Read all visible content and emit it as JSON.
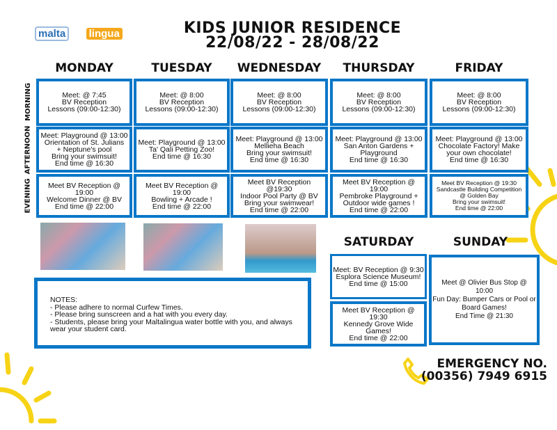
{
  "logo": {
    "line1": "malta",
    "line2": "lingua"
  },
  "title": {
    "line1": "KIDS JUNIOR RESIDENCE",
    "line2": "22/08/22 - 28/08/22"
  },
  "rows": [
    "MORNING",
    "AFTERNOON",
    "EVENING"
  ],
  "weekdays": [
    {
      "name": "MONDAY",
      "morning": "Meet: @ 7:45\nBV Reception\nLessons (09:00-12:30)",
      "afternoon": "Meet: Playground @ 13:00\nOrientation of St. Julians\n+ Neptune's pool\nBring your swimsuit!\nEnd time @ 16:30",
      "evening": "Meet BV Reception @ 19:00\nWelcome Dinner @ BV\nEnd time @ 22:00"
    },
    {
      "name": "TUESDAY",
      "morning": "Meet: @ 8:00\nBV Reception\nLessons (09:00-12:30)",
      "afternoon": "Meet: Playground @ 13:00\nTa' Qali Petting Zoo!\nEnd time @ 16:30",
      "evening": "Meet BV Reception @ 19:00\nBowling + Arcade !\nEnd time @ 22:00"
    },
    {
      "name": "WEDNESDAY",
      "morning": "Meet: @ 8:00\nBV Reception\nLessons (09:00-12:30)",
      "afternoon": "Meet: Playground @ 13:00\nMellieha Beach\nBring your swimsuit!\nEnd time @ 16:30",
      "evening": "Meet BV Reception @19:30\nIndoor Pool Party @ BV\nBring your swimwear!\nEnd time @ 22:00"
    },
    {
      "name": "THURSDAY",
      "morning": "Meet: @ 8:00\nBV Reception\nLessons (09:00-12:30)",
      "afternoon": "Meet: Playground @ 13:00\nSan Anton Gardens +\nPlayground\nEnd time @ 16:30",
      "evening": "Meet BV Reception @ 19:00\nPembroke Playground +\nOutdoor wide games !\nEnd time @ 22:00"
    },
    {
      "name": "FRIDAY",
      "morning": "Meet: @ 8:00\nBV Reception\nLessons (09:00-12:30)",
      "afternoon": "Meet: Playground @ 13:00\nChocolate Factory! Make\nyour own chocolate!\nEnd time @ 16:30",
      "evening": "Meet BV Reception @ 19:30\nSandcastle Building Competition\n@ Golden Bay\nBring your swimsuit!\nEnd time @ 22:00"
    }
  ],
  "saturday": {
    "name": "SATURDAY",
    "day": "Meet: BV Reception @ 9:30\nEsplora Science Museum!\nEnd time @ 15:00",
    "evening": "Meet BV Reception @ 19:30\nKennedy Grove Wide Games!\nEnd time @ 22:00"
  },
  "sunday": {
    "name": "SUNDAY",
    "day": "Meet @ Olivier Bus Stop @ 10:00\nFun Day: Bumper Cars or Pool or\nBoard Games!\nEnd Time @ 21:30"
  },
  "notes": "NOTES:\n- Please adhere to normal Curfew Times.\n- Please bring sunscreen and a hat with you every day.\n- Students, please bring your Maltalingua water bottle with you, and always wear your student card.",
  "emergency": {
    "label": "EMERGENCY NO.",
    "number": "(00356) 7949 6915"
  },
  "colors": {
    "border": "#0a77c8",
    "sun": "#f7d316",
    "logo_blue": "#2a6fb5",
    "logo_orange": "#f5a81c"
  }
}
